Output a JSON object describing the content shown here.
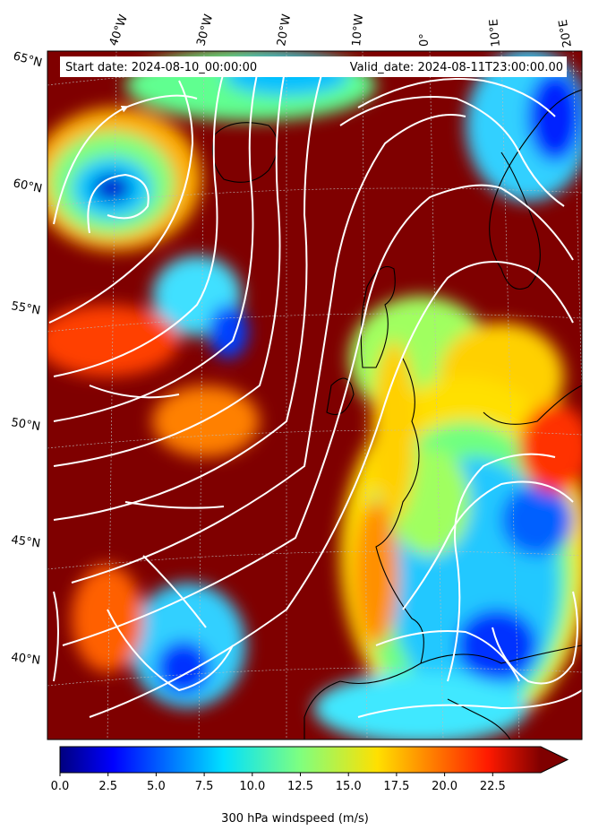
{
  "header": {
    "start_date": "Start date: 2024-08-10_00:00:00",
    "valid_date": "Valid_date: 2024-08-11T23:00:00.00"
  },
  "map": {
    "longitude_labels": [
      "40°W",
      "30°W",
      "20°W",
      "10°W",
      "0°",
      "10°E",
      "20°E"
    ],
    "latitude_labels": [
      "65°N",
      "60°N",
      "55°N",
      "50°N",
      "45°N",
      "40°N"
    ],
    "field": "300 hPa windspeed",
    "overlay": "streamlines"
  },
  "colorbar": {
    "label": "300 hPa windspeed (m/s)",
    "ticks": [
      "0.0",
      "2.5",
      "5.0",
      "7.5",
      "10.0",
      "12.5",
      "15.0",
      "17.5",
      "20.0",
      "22.5"
    ],
    "range": [
      0,
      25
    ],
    "extend": "max",
    "colormap": "jet"
  }
}
